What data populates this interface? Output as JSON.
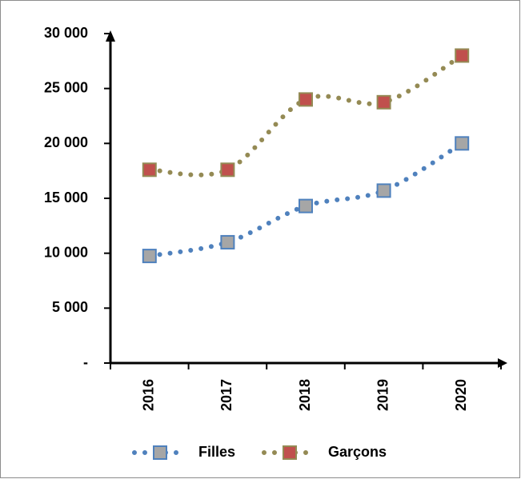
{
  "chart_data": {
    "type": "line",
    "categories": [
      "2016",
      "2017",
      "2018",
      "2019",
      "2020"
    ],
    "series": [
      {
        "name": "Filles",
        "color": "#4f81bd",
        "marker_color": "#a6a6a6",
        "values": [
          9750,
          11000,
          14300,
          15700,
          20000
        ]
      },
      {
        "name": "Garçons",
        "color": "#948a54",
        "marker_color": "#c0504d",
        "values": [
          17600,
          17600,
          24000,
          23750,
          28000
        ]
      }
    ],
    "ylim": [
      0,
      30000
    ],
    "yticks": [
      {
        "value": 0,
        "label": "-"
      },
      {
        "value": 5000,
        "label": "5 000"
      },
      {
        "value": 10000,
        "label": "10 000"
      },
      {
        "value": 15000,
        "label": "15 000"
      },
      {
        "value": 20000,
        "label": "20 000"
      },
      {
        "value": 25000,
        "label": "25 000"
      },
      {
        "value": 30000,
        "label": "30 000"
      }
    ],
    "legend": "bottom"
  }
}
